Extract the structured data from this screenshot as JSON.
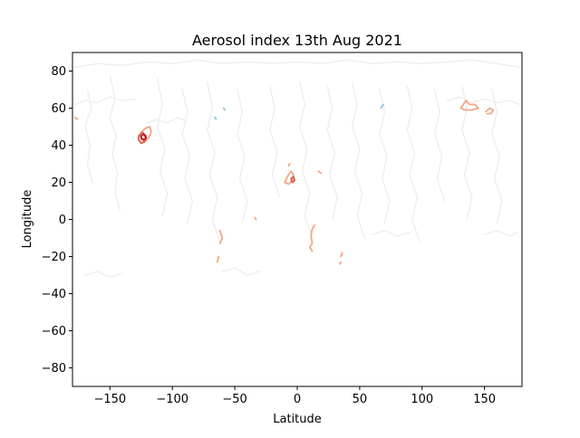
{
  "chart_data": {
    "type": "contour",
    "title": "Aerosol index 13th Aug 2021",
    "xlabel": "Latitude",
    "ylabel": "Longitude",
    "xlim": [
      -180,
      180
    ],
    "ylim": [
      -90,
      90
    ],
    "xticks": [
      -150,
      -100,
      -50,
      0,
      50,
      100,
      150
    ],
    "xtick_labels": [
      "−150",
      "−100",
      "−50",
      "0",
      "50",
      "100",
      "150"
    ],
    "yticks": [
      80,
      60,
      40,
      20,
      0,
      -20,
      -40,
      -60,
      -80
    ],
    "ytick_labels": [
      "80",
      "60",
      "40",
      "20",
      "0",
      "−20",
      "−40",
      "−60",
      "−80"
    ],
    "grid": false,
    "legend": "none",
    "colors": {
      "background_contour": "#ececec",
      "low_positive": "#f4a582",
      "high_positive": "#d6604d",
      "very_high": "#b2182b",
      "negative": "#92c5de"
    },
    "contours": [
      {
        "level": "low",
        "color": "#ececec",
        "points": [
          [
            -178,
            82
          ],
          [
            -160,
            84
          ],
          [
            -140,
            83
          ],
          [
            -120,
            85
          ],
          [
            -100,
            84
          ],
          [
            -80,
            86
          ],
          [
            -60,
            84
          ],
          [
            -40,
            85
          ],
          [
            -20,
            84
          ],
          [
            0,
            85
          ],
          [
            20,
            84
          ],
          [
            40,
            86
          ],
          [
            60,
            84
          ],
          [
            80,
            85
          ],
          [
            100,
            84
          ],
          [
            120,
            85
          ],
          [
            140,
            86
          ],
          [
            160,
            84
          ],
          [
            178,
            82
          ]
        ]
      },
      {
        "level": "low",
        "color": "#ececec",
        "points": [
          [
            -168,
            70
          ],
          [
            -165,
            60
          ],
          [
            -170,
            50
          ],
          [
            -166,
            40
          ],
          [
            -168,
            30
          ],
          [
            -164,
            20
          ]
        ]
      },
      {
        "level": "low",
        "color": "#ececec",
        "points": [
          [
            -150,
            78
          ],
          [
            -146,
            65
          ],
          [
            -150,
            55
          ],
          [
            -145,
            45
          ],
          [
            -148,
            35
          ],
          [
            -144,
            25
          ],
          [
            -146,
            15
          ],
          [
            -142,
            5
          ]
        ]
      },
      {
        "level": "low",
        "color": "#ececec",
        "points": [
          [
            -112,
            76
          ],
          [
            -108,
            62
          ],
          [
            -112,
            50
          ],
          [
            -106,
            38
          ],
          [
            -110,
            26
          ],
          [
            -104,
            14
          ],
          [
            -108,
            2
          ]
        ]
      },
      {
        "level": "low",
        "color": "#ececec",
        "points": [
          [
            -92,
            70
          ],
          [
            -88,
            58
          ],
          [
            -92,
            46
          ],
          [
            -86,
            34
          ],
          [
            -90,
            22
          ],
          [
            -84,
            10
          ],
          [
            -88,
            -2
          ]
        ]
      },
      {
        "level": "low",
        "color": "#ececec",
        "points": [
          [
            -72,
            74
          ],
          [
            -68,
            60
          ],
          [
            -72,
            48
          ],
          [
            -66,
            36
          ],
          [
            -70,
            24
          ],
          [
            -64,
            12
          ],
          [
            -68,
            0
          ],
          [
            -62,
            -12
          ]
        ]
      },
      {
        "level": "low",
        "color": "#ececec",
        "points": [
          [
            -48,
            70
          ],
          [
            -44,
            58
          ],
          [
            -48,
            46
          ],
          [
            -42,
            34
          ],
          [
            -46,
            22
          ],
          [
            -40,
            10
          ],
          [
            -44,
            -2
          ]
        ]
      },
      {
        "level": "low",
        "color": "#ececec",
        "points": [
          [
            -22,
            72
          ],
          [
            -18,
            60
          ],
          [
            -22,
            48
          ],
          [
            -16,
            36
          ],
          [
            -20,
            24
          ],
          [
            -14,
            12
          ]
        ]
      },
      {
        "level": "low",
        "color": "#ececec",
        "points": [
          [
            2,
            74
          ],
          [
            6,
            62
          ],
          [
            2,
            50
          ],
          [
            8,
            38
          ],
          [
            4,
            26
          ],
          [
            10,
            14
          ],
          [
            6,
            2
          ],
          [
            12,
            -10
          ]
        ]
      },
      {
        "level": "low",
        "color": "#ececec",
        "points": [
          [
            24,
            72
          ],
          [
            28,
            60
          ],
          [
            24,
            48
          ],
          [
            30,
            36
          ],
          [
            26,
            24
          ],
          [
            32,
            12
          ],
          [
            28,
            0
          ]
        ]
      },
      {
        "level": "low",
        "color": "#ececec",
        "points": [
          [
            44,
            74
          ],
          [
            48,
            62
          ],
          [
            44,
            50
          ],
          [
            50,
            38
          ],
          [
            46,
            26
          ],
          [
            52,
            14
          ],
          [
            48,
            2
          ],
          [
            54,
            -10
          ]
        ]
      },
      {
        "level": "low",
        "color": "#ececec",
        "points": [
          [
            66,
            70
          ],
          [
            70,
            58
          ],
          [
            66,
            46
          ],
          [
            72,
            34
          ],
          [
            68,
            22
          ],
          [
            74,
            10
          ],
          [
            70,
            -2
          ]
        ]
      },
      {
        "level": "low",
        "color": "#ececec",
        "points": [
          [
            88,
            72
          ],
          [
            92,
            60
          ],
          [
            88,
            48
          ],
          [
            94,
            36
          ],
          [
            90,
            24
          ],
          [
            96,
            12
          ],
          [
            92,
            0
          ],
          [
            98,
            -12
          ]
        ]
      },
      {
        "level": "low",
        "color": "#ececec",
        "points": [
          [
            110,
            70
          ],
          [
            114,
            58
          ],
          [
            110,
            46
          ],
          [
            116,
            34
          ],
          [
            112,
            22
          ],
          [
            118,
            10
          ]
        ]
      },
      {
        "level": "low",
        "color": "#ececec",
        "points": [
          [
            132,
            72
          ],
          [
            136,
            60
          ],
          [
            132,
            48
          ],
          [
            138,
            36
          ],
          [
            134,
            24
          ],
          [
            140,
            12
          ],
          [
            136,
            0
          ]
        ]
      },
      {
        "level": "low",
        "color": "#ececec",
        "points": [
          [
            156,
            70
          ],
          [
            160,
            58
          ],
          [
            156,
            46
          ],
          [
            162,
            34
          ],
          [
            158,
            22
          ],
          [
            164,
            10
          ],
          [
            160,
            -2
          ]
        ]
      },
      {
        "level": "low",
        "color": "#ececec",
        "points": [
          [
            -178,
            62
          ],
          [
            -170,
            64
          ],
          [
            -160,
            63
          ],
          [
            -150,
            66
          ],
          [
            -140,
            64
          ],
          [
            -130,
            65
          ]
        ]
      },
      {
        "level": "low",
        "color": "#ececec",
        "points": [
          [
            120,
            64
          ],
          [
            130,
            66
          ],
          [
            140,
            63
          ],
          [
            150,
            65
          ],
          [
            160,
            63
          ],
          [
            170,
            64
          ],
          [
            178,
            62
          ]
        ]
      },
      {
        "level": "low",
        "color": "#ececec",
        "points": [
          [
            -120,
            52
          ],
          [
            -112,
            54
          ],
          [
            -104,
            52
          ],
          [
            -96,
            55
          ],
          [
            -88,
            53
          ]
        ]
      },
      {
        "level": "low",
        "color": "#ececec",
        "points": [
          [
            -170,
            -30
          ],
          [
            -160,
            -28
          ],
          [
            -150,
            -31
          ],
          [
            -140,
            -29
          ]
        ]
      },
      {
        "level": "low",
        "color": "#ececec",
        "points": [
          [
            -60,
            -28
          ],
          [
            -50,
            -26
          ],
          [
            -40,
            -30
          ],
          [
            -30,
            -28
          ]
        ]
      },
      {
        "level": "low",
        "color": "#ececec",
        "points": [
          [
            60,
            -8
          ],
          [
            70,
            -6
          ],
          [
            80,
            -9
          ],
          [
            90,
            -7
          ]
        ]
      },
      {
        "level": "low",
        "color": "#ececec",
        "points": [
          [
            150,
            -8
          ],
          [
            160,
            -6
          ],
          [
            170,
            -9
          ],
          [
            176,
            -7
          ]
        ]
      },
      {
        "level": "mid",
        "color": "#f4a582",
        "points": [
          [
            -126,
            46
          ],
          [
            -122,
            49
          ],
          [
            -118,
            50
          ],
          [
            -117,
            47
          ],
          [
            -119,
            44
          ],
          [
            -122,
            42
          ],
          [
            -125,
            43
          ],
          [
            -126,
            46
          ]
        ]
      },
      {
        "level": "mid",
        "color": "#f4a582",
        "points": [
          [
            -178,
            55
          ],
          [
            -176,
            54
          ]
        ]
      },
      {
        "level": "high",
        "color": "#d6604d",
        "points": [
          [
            -127,
            45
          ],
          [
            -124,
            47
          ],
          [
            -121,
            45
          ],
          [
            -122,
            42
          ],
          [
            -125,
            41
          ],
          [
            -127,
            43
          ],
          [
            -127,
            45
          ]
        ]
      },
      {
        "level": "very_high",
        "color": "#b2182b",
        "points": [
          [
            -125,
            45
          ],
          [
            -123,
            46
          ],
          [
            -121,
            44
          ],
          [
            -123,
            43
          ],
          [
            -125,
            44
          ],
          [
            -125,
            45
          ]
        ]
      },
      {
        "level": "mid",
        "color": "#f4a582",
        "points": [
          [
            -10,
            20
          ],
          [
            -8,
            23
          ],
          [
            -5,
            26
          ],
          [
            -3,
            24
          ],
          [
            -4,
            21
          ],
          [
            -7,
            19
          ],
          [
            -10,
            20
          ]
        ]
      },
      {
        "level": "mid",
        "color": "#f4a582",
        "points": [
          [
            -7,
            29
          ],
          [
            -6,
            30
          ]
        ]
      },
      {
        "level": "high",
        "color": "#d6604d",
        "points": [
          [
            -5,
            22
          ],
          [
            -3,
            23
          ],
          [
            -2,
            21
          ],
          [
            -4,
            20
          ],
          [
            -5,
            22
          ]
        ]
      },
      {
        "level": "mid",
        "color": "#f4a582",
        "points": [
          [
            17,
            26
          ],
          [
            19,
            25
          ]
        ]
      },
      {
        "level": "mid",
        "color": "#f4a582",
        "points": [
          [
            14,
            -3
          ],
          [
            12,
            -5
          ],
          [
            11,
            -9
          ],
          [
            12,
            -13
          ],
          [
            10,
            -15
          ],
          [
            12,
            -17
          ]
        ]
      },
      {
        "level": "mid",
        "color": "#f4a582",
        "points": [
          [
            -62,
            -6
          ],
          [
            -60,
            -10
          ],
          [
            -62,
            -13
          ]
        ]
      },
      {
        "level": "mid",
        "color": "#f4a582",
        "points": [
          [
            -63,
            -20
          ],
          [
            -64,
            -23
          ]
        ]
      },
      {
        "level": "mid",
        "color": "#f4a582",
        "points": [
          [
            -34,
            1
          ],
          [
            -33,
            0
          ]
        ]
      },
      {
        "level": "mid",
        "color": "#f4a582",
        "points": [
          [
            36,
            -18
          ],
          [
            35,
            -20
          ]
        ]
      },
      {
        "level": "mid",
        "color": "#f4a582",
        "points": [
          [
            35,
            -23
          ],
          [
            34,
            -24
          ]
        ]
      },
      {
        "level": "mid",
        "color": "#f4a582",
        "points": [
          [
            131,
            60
          ],
          [
            135,
            64
          ],
          [
            138,
            62
          ],
          [
            142,
            62
          ],
          [
            145,
            60
          ],
          [
            140,
            59
          ],
          [
            134,
            59
          ],
          [
            131,
            60
          ]
        ]
      },
      {
        "level": "mid",
        "color": "#f4a582",
        "points": [
          [
            151,
            58
          ],
          [
            154,
            60
          ],
          [
            157,
            59
          ],
          [
            155,
            57
          ],
          [
            152,
            57
          ]
        ]
      },
      {
        "level": "neg",
        "color": "#92c5de",
        "points": [
          [
            -66,
            55
          ],
          [
            -65,
            54
          ]
        ]
      },
      {
        "level": "neg",
        "color": "#92c5de",
        "points": [
          [
            69,
            62
          ],
          [
            67,
            60
          ]
        ]
      },
      {
        "level": "neg",
        "color": "#92c5de",
        "points": [
          [
            -59,
            60
          ],
          [
            -58,
            59
          ]
        ]
      }
    ]
  }
}
